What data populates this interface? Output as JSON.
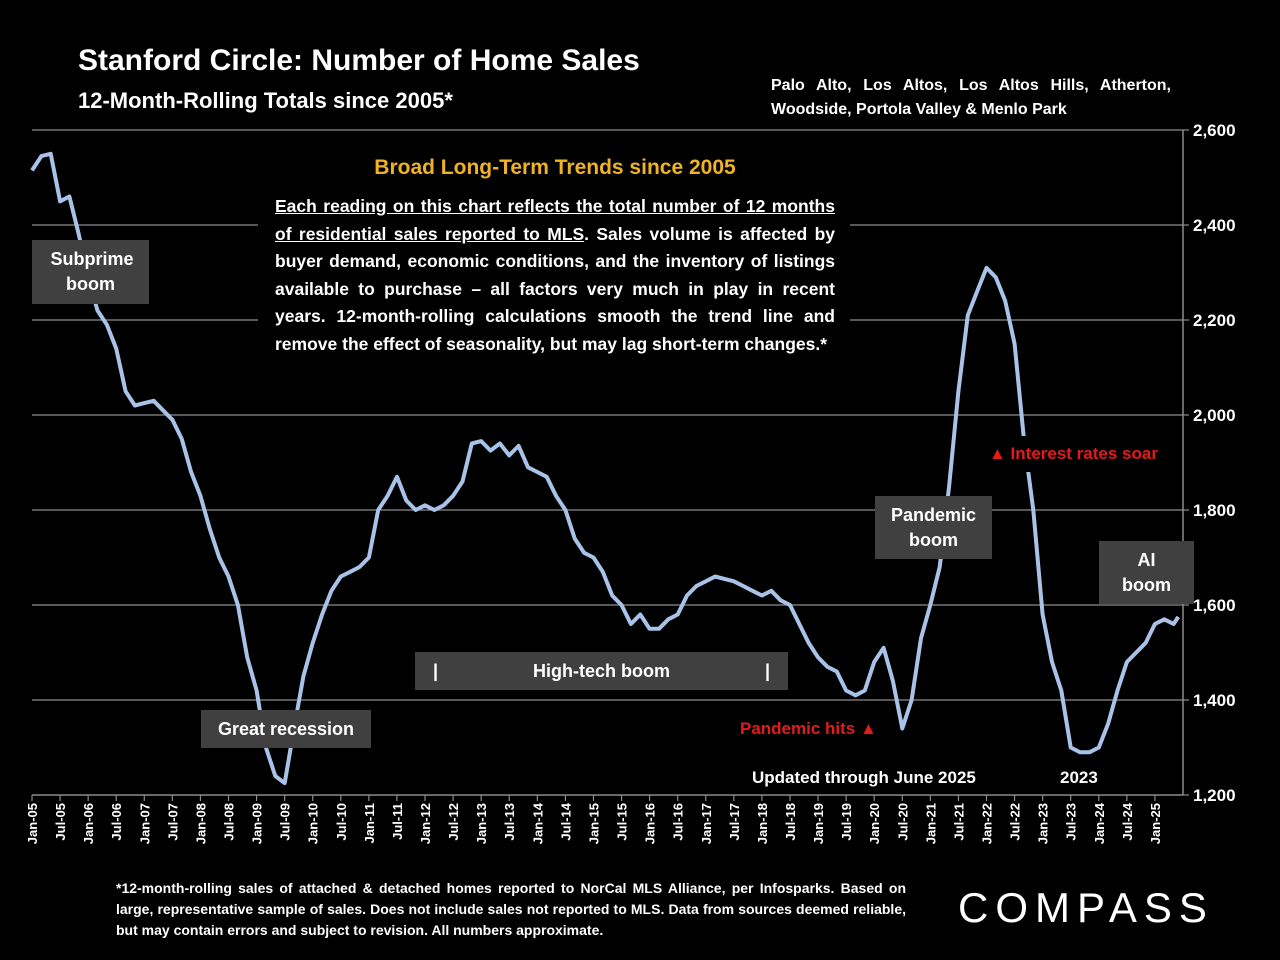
{
  "header": {
    "title": "Stanford Circle:  Number of Home Sales",
    "subtitle": "12-Month-Rolling Totals since 2005*",
    "region_line1": "Palo Alto, Los Altos, Los Altos Hills, Atherton,",
    "region_line2": "Woodside, Portola Valley & Menlo Park"
  },
  "annotations": {
    "trend_heading": "Broad Long-Term Trends since 2005",
    "trend_underlined": "Each reading on this chart reflects the total number of 12 months of residential sales reported to MLS",
    "trend_body": ". Sales volume is affected by buyer demand, economic conditions, and the inventory of listings available to purchase – all factors very much in play in recent years. 12-month-rolling calculations smooth the trend line and remove the effect of seasonality, but may lag short-term changes.*",
    "subprime": "Subprime boom",
    "great_recession": "Great recession",
    "hightech_bar_left": "|",
    "hightech": "High-tech boom",
    "hightech_bar_right": "|",
    "pandemic_hits": "Pandemic hits ▲",
    "pandemic_boom": "Pandemic boom",
    "interest_rates": "▲ Interest rates soar",
    "ai_boom": "AI boom",
    "updated": "Updated through June 2025",
    "year_2023": "2023"
  },
  "footnote": "*12-month-rolling sales of attached & detached homes reported to NorCal MLS Alliance, per Infosparks. Based on large, representative sample of sales. Does not include sales not reported to MLS. Data from sources deemed reliable, but may contain errors and subject to revision. All numbers approximate.",
  "logo": "COMPASS",
  "colors": {
    "line": "#a9c3e8",
    "annotation_red": "#e31b1b",
    "heading_gold": "#f0b323",
    "label_box": "#404040",
    "grid": "#8c8c8c"
  },
  "chart_data": {
    "type": "line",
    "title": "Stanford Circle:  Number of Home Sales",
    "subtitle": "12-Month-Rolling Totals since 2005*",
    "ylim": [
      1200,
      2600
    ],
    "yticks": [
      1200,
      1400,
      1600,
      1800,
      2000,
      2200,
      2400,
      2600
    ],
    "ytick_labels": [
      "1,200",
      "1,400",
      "1,600",
      "1,800",
      "2,000",
      "2,200",
      "2,400",
      "2,600"
    ],
    "y_axis_side": "right",
    "grid": "horizontal",
    "xtick_labels": [
      "Jan-05",
      "Jul-05",
      "Jan-06",
      "Jul-06",
      "Jan-07",
      "Jul-07",
      "Jan-08",
      "Jul-08",
      "Jan-09",
      "Jul-09",
      "Jan-10",
      "Jul-10",
      "Jan-11",
      "Jul-11",
      "Jan-12",
      "Jul-12",
      "Jan-13",
      "Jul-13",
      "Jan-14",
      "Jul-14",
      "Jan-15",
      "Jul-15",
      "Jan-16",
      "Jul-16",
      "Jan-17",
      "Jul-17",
      "Jan-18",
      "Jul-18",
      "Jan-19",
      "Jul-19",
      "Jan-20",
      "Jul-20",
      "Jan-21",
      "Jul-21",
      "Jan-22",
      "Jul-22",
      "Jan-23",
      "Jul-23",
      "Jan-24",
      "Jul-24",
      "Jan-25"
    ],
    "series": [
      {
        "x": [
          "Jan-05",
          "Mar-05",
          "May-05",
          "Jul-05",
          "Sep-05",
          "Nov-05",
          "Jan-06",
          "Mar-06",
          "May-06",
          "Jul-06",
          "Sep-06",
          "Nov-06",
          "Jan-07",
          "Mar-07",
          "May-07",
          "Jul-07",
          "Sep-07",
          "Nov-07",
          "Jan-08",
          "Mar-08",
          "May-08",
          "Jul-08",
          "Sep-08",
          "Nov-08",
          "Jan-09",
          "Mar-09",
          "May-09",
          "Jul-09",
          "Sep-09",
          "Nov-09",
          "Jan-10",
          "Mar-10",
          "May-10",
          "Jul-10",
          "Sep-10",
          "Nov-10",
          "Jan-11",
          "Mar-11",
          "May-11",
          "Jul-11",
          "Sep-11",
          "Nov-11",
          "Jan-12",
          "Mar-12",
          "May-12",
          "Jul-12",
          "Sep-12",
          "Nov-12",
          "Jan-13",
          "Mar-13",
          "May-13",
          "Jul-13",
          "Sep-13",
          "Nov-13",
          "Jan-14",
          "Mar-14",
          "May-14",
          "Jul-14",
          "Sep-14",
          "Nov-14",
          "Jan-15",
          "Mar-15",
          "May-15",
          "Jul-15",
          "Sep-15",
          "Nov-15",
          "Jan-16",
          "Mar-16",
          "May-16",
          "Jul-16",
          "Sep-16",
          "Nov-16",
          "Jan-17",
          "Mar-17",
          "May-17",
          "Jul-17",
          "Sep-17",
          "Nov-17",
          "Jan-18",
          "Mar-18",
          "May-18",
          "Jul-18",
          "Sep-18",
          "Nov-18",
          "Jan-19",
          "Mar-19",
          "May-19",
          "Jul-19",
          "Sep-19",
          "Nov-19",
          "Jan-20",
          "Mar-20",
          "May-20",
          "Jul-20",
          "Sep-20",
          "Nov-20",
          "Jan-21",
          "Mar-21",
          "May-21",
          "Jul-21",
          "Sep-21",
          "Nov-21",
          "Jan-22",
          "Mar-22",
          "May-22",
          "Jul-22",
          "Sep-22",
          "Nov-22",
          "Jan-23",
          "Mar-23",
          "May-23",
          "Jul-23",
          "Sep-23",
          "Nov-23",
          "Jan-24",
          "Mar-24",
          "May-24",
          "Jul-24",
          "Sep-24",
          "Nov-24",
          "Jan-25",
          "Mar-25",
          "May-25",
          "Jun-25"
        ],
        "values": [
          2515,
          2545,
          2550,
          2450,
          2460,
          2380,
          2290,
          2220,
          2190,
          2140,
          2050,
          2020,
          2025,
          2030,
          2010,
          1990,
          1950,
          1880,
          1830,
          1760,
          1700,
          1660,
          1600,
          1490,
          1420,
          1300,
          1240,
          1225,
          1340,
          1450,
          1520,
          1580,
          1630,
          1660,
          1670,
          1680,
          1700,
          1800,
          1830,
          1870,
          1820,
          1800,
          1810,
          1800,
          1810,
          1830,
          1860,
          1940,
          1945,
          1925,
          1940,
          1915,
          1935,
          1890,
          1880,
          1870,
          1830,
          1800,
          1740,
          1710,
          1700,
          1670,
          1620,
          1600,
          1560,
          1580,
          1550,
          1550,
          1570,
          1580,
          1620,
          1640,
          1650,
          1660,
          1655,
          1650,
          1640,
          1630,
          1620,
          1630,
          1610,
          1600,
          1560,
          1520,
          1490,
          1470,
          1460,
          1420,
          1410,
          1420,
          1480,
          1510,
          1440,
          1340,
          1400,
          1530,
          1600,
          1680,
          1850,
          2050,
          2210,
          2260,
          2310,
          2290,
          2240,
          2150,
          1950,
          1800,
          1580,
          1480,
          1420,
          1300,
          1290,
          1290,
          1300,
          1350,
          1420,
          1480,
          1500,
          1520,
          1560,
          1570,
          1560,
          1575
        ]
      }
    ]
  }
}
